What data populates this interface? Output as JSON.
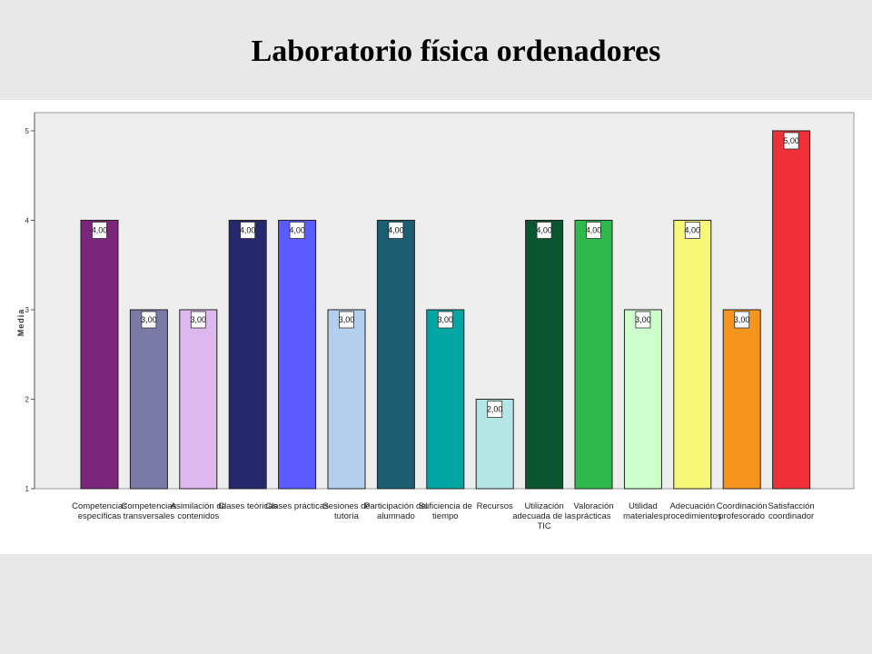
{
  "slide": {
    "title": "Laboratorio física ordenadores"
  },
  "chart_data": {
    "type": "bar",
    "title": "",
    "xlabel": "",
    "ylabel": "Media",
    "ylim": [
      1,
      5
    ],
    "yticks": [
      "1",
      "2",
      "3",
      "4",
      "5"
    ],
    "grid": false,
    "categories": [
      [
        "Competencias",
        "específicas"
      ],
      [
        "Competencias",
        "transversales"
      ],
      [
        "Asimilación de",
        "contenidos"
      ],
      [
        "Clases teóricas"
      ],
      [
        "Clases prácticas"
      ],
      [
        "Sesiones de",
        "tutoría"
      ],
      [
        "Participación del",
        "alumnado"
      ],
      [
        "Suficiencia de",
        "tiempo"
      ],
      [
        "Recursos"
      ],
      [
        "Utilización",
        "adecuada de las",
        "TIC"
      ],
      [
        "Valoración",
        "prácticas"
      ],
      [
        "Utilidad",
        "materiales"
      ],
      [
        "Adecuación",
        "procedimientos"
      ],
      [
        "Coordinación",
        "profesorado"
      ],
      [
        "Satisfacción",
        "coordinador"
      ]
    ],
    "values": [
      4,
      3,
      3,
      4,
      4,
      3,
      4,
      3,
      2,
      4,
      4,
      3,
      4,
      3,
      5
    ],
    "value_labels": [
      "4,00",
      "3,00",
      "3,00",
      "4,00",
      "4,00",
      "3,00",
      "4,00",
      "3,00",
      "2,00",
      "4,00",
      "4,00",
      "3,00",
      "4,00",
      "3,00",
      "5,00"
    ],
    "colors": [
      "#7b267a",
      "#7a7aa7",
      "#dcb8ee",
      "#26286e",
      "#5a5cff",
      "#b2d0ee",
      "#1b5e72",
      "#00a6a4",
      "#b4e6e6",
      "#0a5630",
      "#2fb84c",
      "#ccffcc",
      "#f8f878",
      "#f5951e",
      "#ee3039"
    ],
    "plot_background": "#eeeeee"
  }
}
